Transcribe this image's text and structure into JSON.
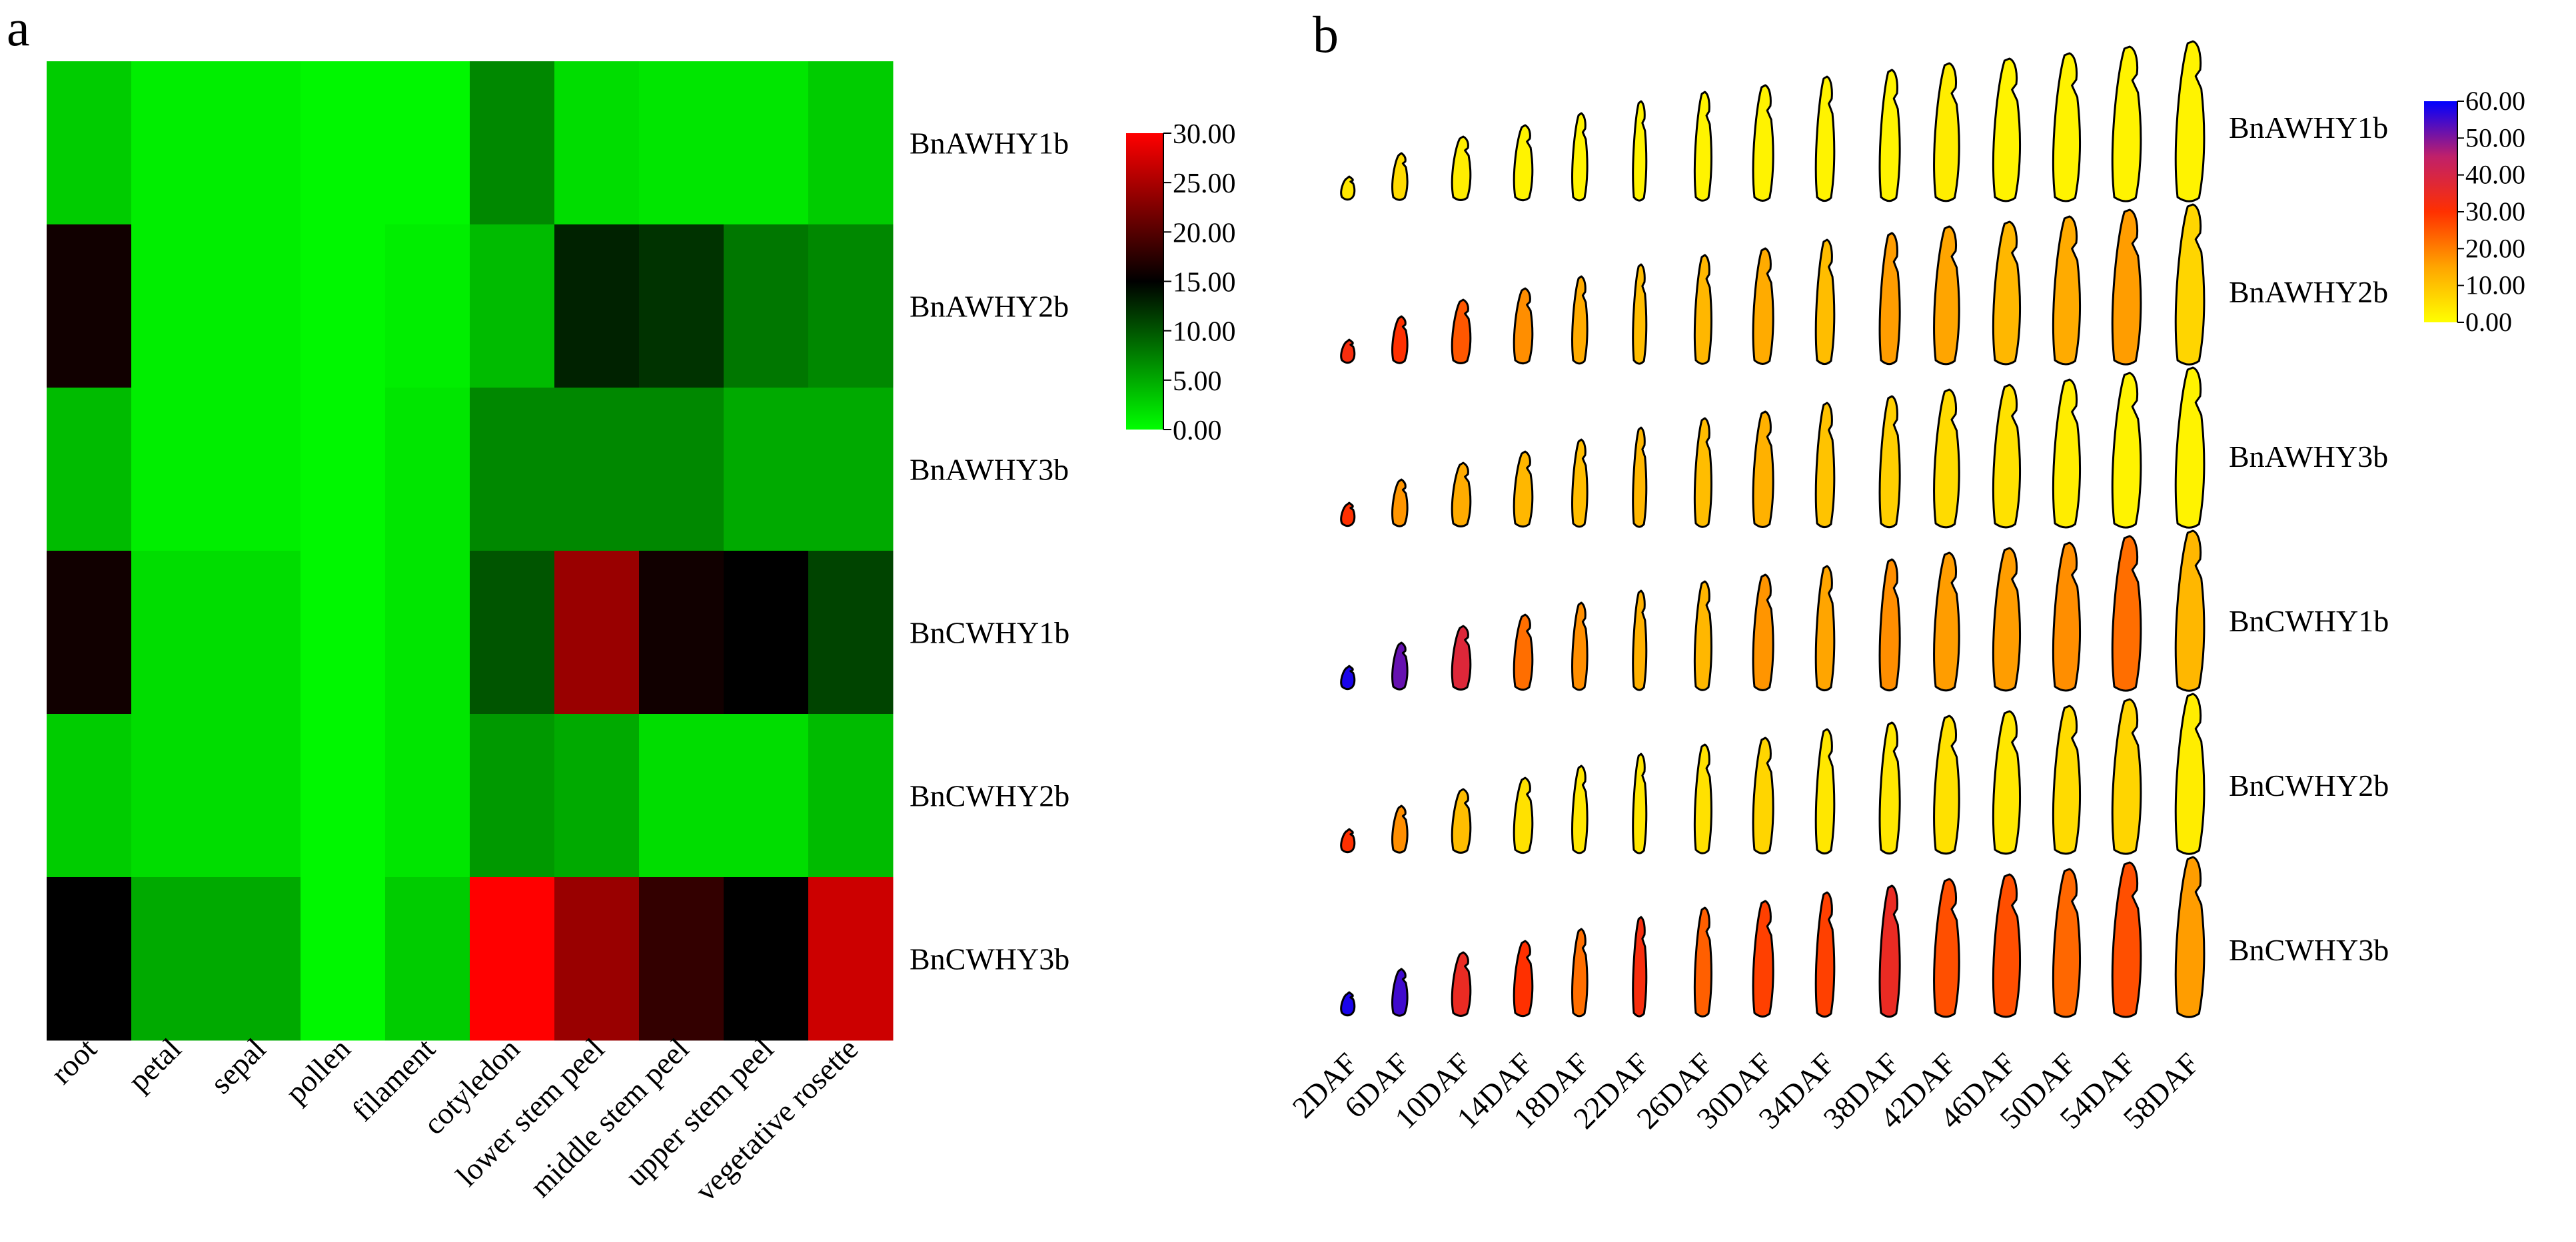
{
  "panel_a_label": "a",
  "panel_b_label": "b",
  "chart_data": [
    {
      "type": "heatmap",
      "panel": "a",
      "title": "",
      "columns": [
        "root",
        "petal",
        "sepal",
        "pollen",
        "filament",
        "cotyledon",
        "lower stem peel",
        "middle stem peel",
        "upper stem peel",
        "vegetative rosette"
      ],
      "rows": [
        "BnAWHY1b",
        "BnAWHY2b",
        "BnAWHY3b",
        "BnCWHY1b",
        "BnCWHY2b",
        "BnCWHY3b"
      ],
      "values": [
        [
          3,
          1,
          1,
          0.5,
          0.5,
          7,
          2,
          1.5,
          1.5,
          3
        ],
        [
          16,
          1,
          1,
          0.5,
          1,
          4,
          13,
          12,
          8,
          7
        ],
        [
          4,
          1,
          1,
          0.5,
          1.5,
          7,
          7,
          7,
          5,
          5
        ],
        [
          16,
          2,
          2,
          0.5,
          1.5,
          10,
          24,
          16,
          15,
          11
        ],
        [
          3,
          2,
          2,
          0.5,
          1.5,
          6,
          5,
          2,
          2,
          4
        ],
        [
          15,
          5,
          5,
          0.5,
          3,
          30,
          24,
          18,
          15,
          27
        ]
      ],
      "colorbar": {
        "min": 0,
        "max": 30,
        "ticks": [
          "30.00",
          "25.00",
          "20.00",
          "15.00",
          "10.00",
          "5.00",
          "0.00"
        ],
        "colors": [
          "#00ff00",
          "#000000",
          "#ff0000"
        ]
      }
    },
    {
      "type": "heatmap",
      "panel": "b",
      "title": "",
      "columns": [
        "2DAF",
        "6DAF",
        "10DAF",
        "14DAF",
        "18DAF",
        "22DAF",
        "26DAF",
        "30DAF",
        "34DAF",
        "38DAF",
        "42DAF",
        "46DAF",
        "50DAF",
        "54DAF",
        "58DAF"
      ],
      "rows": [
        "BnAWHY1b",
        "BnAWHY2b",
        "BnAWHY3b",
        "BnCWHY1b",
        "BnCWHY2b",
        "BnCWHY3b"
      ],
      "values": [
        [
          4,
          6,
          3,
          2,
          2,
          2,
          2,
          2,
          2,
          2,
          3,
          2,
          2,
          2,
          2
        ],
        [
          32,
          30,
          25,
          18,
          14,
          11,
          12,
          14,
          11,
          16,
          15,
          12,
          14,
          16,
          7
        ],
        [
          30,
          17,
          14,
          12,
          11,
          12,
          11,
          13,
          10,
          8,
          6,
          5,
          3,
          2,
          2
        ],
        [
          58,
          52,
          38,
          22,
          18,
          13,
          12,
          17,
          15,
          18,
          16,
          16,
          18,
          22,
          12
        ],
        [
          30,
          18,
          11,
          5,
          4,
          4,
          5,
          7,
          4,
          4,
          5,
          4,
          6,
          7,
          3
        ],
        [
          58,
          55,
          35,
          30,
          22,
          32,
          24,
          28,
          28,
          35,
          26,
          26,
          23,
          26,
          16
        ]
      ],
      "colorbar": {
        "min": 0,
        "max": 60,
        "ticks": [
          "60.00",
          "50.00",
          "40.00",
          "30.00",
          "20.00",
          "10.00",
          "0.00"
        ],
        "colors": [
          "#ffff00",
          "#ffa500",
          "#ff3000",
          "#c0206a",
          "#0000ff"
        ]
      }
    }
  ]
}
